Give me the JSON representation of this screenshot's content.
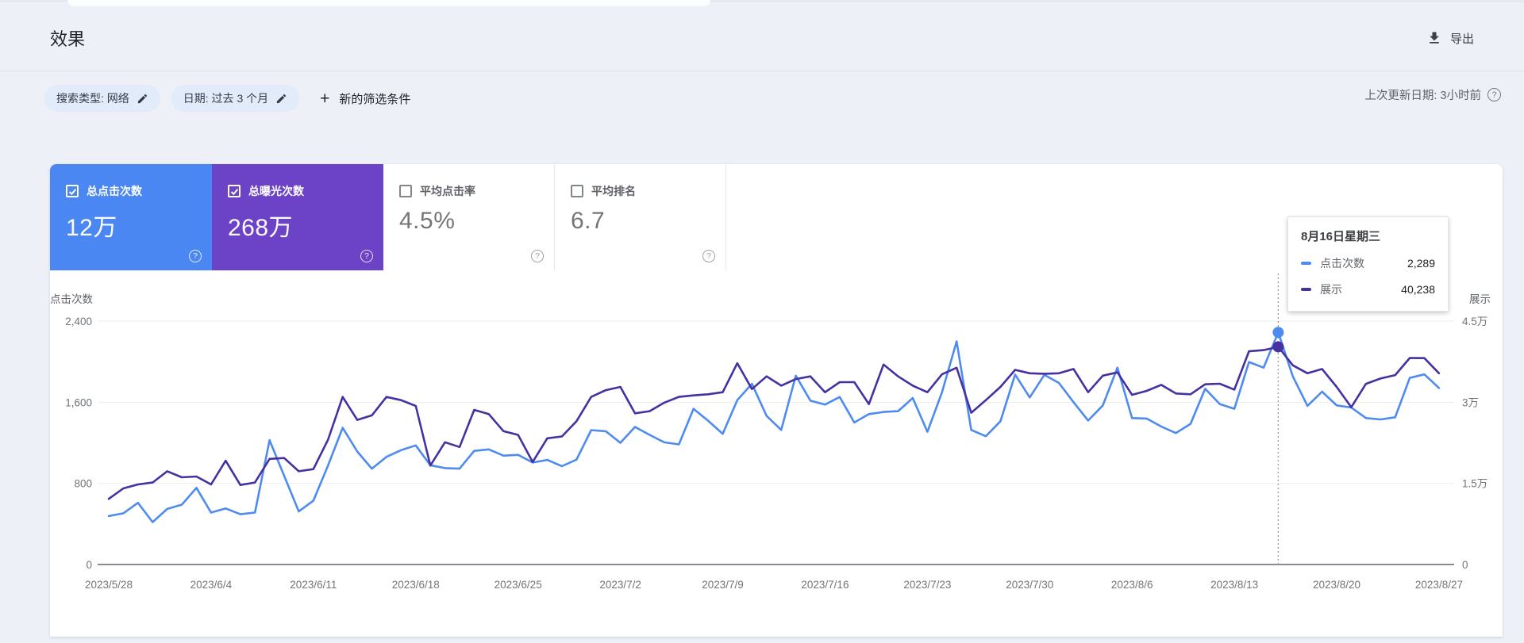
{
  "header": {
    "title": "效果",
    "export_label": "导出",
    "last_update": "上次更新日期: 3小时前"
  },
  "icons": {
    "help": "?",
    "add": "+"
  },
  "filters": {
    "chips": [
      {
        "label": "搜索类型: 网络"
      },
      {
        "label": "日期: 过去 3 个月"
      }
    ],
    "add_filter_label": "新的筛选条件"
  },
  "metrics": [
    {
      "label": "总点击次数",
      "value": "12万",
      "selected": true,
      "color": "#4b87f2"
    },
    {
      "label": "总曝光次数",
      "value": "268万",
      "selected": true,
      "color": "#6c43c7"
    },
    {
      "label": "平均点击率",
      "value": "4.5%",
      "selected": false,
      "color": ""
    },
    {
      "label": "平均排名",
      "value": "6.7",
      "selected": false,
      "color": ""
    }
  ],
  "tooltip": {
    "title": "8月16日星期三",
    "rows": [
      {
        "label": "点击次数",
        "value": "2,289"
      },
      {
        "label": "展示",
        "value": "40,238"
      }
    ]
  },
  "chart_data": {
    "type": "line",
    "x_tick_every_days": 7,
    "left_axis": {
      "title": "点击次数",
      "max": 2400,
      "ticks": [
        {
          "value": 0,
          "label": "0"
        },
        {
          "value": 800,
          "label": "800"
        },
        {
          "value": 1600,
          "label": "1,600"
        },
        {
          "value": 2400,
          "label": "2,400"
        }
      ]
    },
    "right_axis": {
      "title": "展示",
      "max": 45000,
      "ticks": [
        {
          "value": 0,
          "label": "0"
        },
        {
          "value": 15000,
          "label": "1.5万"
        },
        {
          "value": 30000,
          "label": "3万"
        },
        {
          "value": 45000,
          "label": "4.5万"
        }
      ]
    },
    "x": [
      "2023/5/28",
      "2023/5/29",
      "2023/5/30",
      "2023/5/31",
      "2023/6/1",
      "2023/6/2",
      "2023/6/3",
      "2023/6/4",
      "2023/6/5",
      "2023/6/6",
      "2023/6/7",
      "2023/6/8",
      "2023/6/9",
      "2023/6/10",
      "2023/6/11",
      "2023/6/12",
      "2023/6/13",
      "2023/6/14",
      "2023/6/15",
      "2023/6/16",
      "2023/6/17",
      "2023/6/18",
      "2023/6/19",
      "2023/6/20",
      "2023/6/21",
      "2023/6/22",
      "2023/6/23",
      "2023/6/24",
      "2023/6/25",
      "2023/6/26",
      "2023/6/27",
      "2023/6/28",
      "2023/6/29",
      "2023/6/30",
      "2023/7/1",
      "2023/7/2",
      "2023/7/3",
      "2023/7/4",
      "2023/7/5",
      "2023/7/6",
      "2023/7/7",
      "2023/7/8",
      "2023/7/9",
      "2023/7/10",
      "2023/7/11",
      "2023/7/12",
      "2023/7/13",
      "2023/7/14",
      "2023/7/15",
      "2023/7/16",
      "2023/7/17",
      "2023/7/18",
      "2023/7/19",
      "2023/7/20",
      "2023/7/21",
      "2023/7/22",
      "2023/7/23",
      "2023/7/24",
      "2023/7/25",
      "2023/7/26",
      "2023/7/27",
      "2023/7/28",
      "2023/7/29",
      "2023/7/30",
      "2023/7/31",
      "2023/8/1",
      "2023/8/2",
      "2023/8/3",
      "2023/8/4",
      "2023/8/5",
      "2023/8/6",
      "2023/8/7",
      "2023/8/8",
      "2023/8/9",
      "2023/8/10",
      "2023/8/11",
      "2023/8/12",
      "2023/8/13",
      "2023/8/14",
      "2023/8/15",
      "2023/8/16",
      "2023/8/17",
      "2023/8/18",
      "2023/8/19",
      "2023/8/20",
      "2023/8/21",
      "2023/8/22",
      "2023/8/23",
      "2023/8/24",
      "2023/8/25",
      "2023/8/26",
      "2023/8/27"
    ],
    "series": [
      {
        "name": "点击次数",
        "axis": "left",
        "color": "#4e8bf0",
        "values": [
          478,
          505,
          608,
          418,
          548,
          590,
          756,
          512,
          553,
          496,
          512,
          1226,
          875,
          524,
          629,
          977,
          1348,
          1114,
          945,
          1062,
          1127,
          1174,
          979,
          951,
          945,
          1120,
          1135,
          1073,
          1081,
          1005,
          1031,
          969,
          1034,
          1325,
          1314,
          1200,
          1356,
          1278,
          1205,
          1184,
          1535,
          1418,
          1288,
          1621,
          1782,
          1465,
          1327,
          1862,
          1615,
          1577,
          1652,
          1400,
          1483,
          1504,
          1512,
          1642,
          1309,
          1699,
          2200,
          1327,
          1265,
          1413,
          1873,
          1647,
          1870,
          1790,
          1600,
          1420,
          1569,
          1941,
          1444,
          1439,
          1360,
          1296,
          1387,
          1733,
          1582,
          1535,
          1997,
          1941,
          2289,
          1854,
          1564,
          1704,
          1569,
          1548,
          1444,
          1431,
          1452,
          1840,
          1875,
          1740
        ]
      },
      {
        "name": "展示",
        "axis": "right",
        "color": "#47309f",
        "values": [
          12130,
          14075,
          14805,
          15150,
          17240,
          16120,
          16270,
          14805,
          19190,
          14700,
          15150,
          19530,
          19680,
          17240,
          17630,
          23090,
          30980,
          26740,
          27570,
          30980,
          30390,
          29320,
          18300,
          22600,
          21730,
          28590,
          27810,
          24650,
          23960,
          18950,
          23330,
          23670,
          26490,
          30980,
          32240,
          32830,
          27960,
          28350,
          29910,
          30980,
          31270,
          31470,
          31850,
          37220,
          32440,
          34780,
          33070,
          34290,
          34780,
          31850,
          33710,
          33710,
          29660,
          36970,
          34780,
          33070,
          31850,
          35170,
          36380,
          28050,
          30390,
          32830,
          35990,
          35360,
          35260,
          35360,
          36140,
          31850,
          34920,
          35510,
          31370,
          32100,
          33220,
          31610,
          31470,
          33320,
          33420,
          32340,
          39410,
          39640,
          40238,
          36820,
          35360,
          36140,
          32830,
          29080,
          33400,
          34390,
          35020,
          38180,
          38150,
          35360
        ]
      }
    ],
    "selection": {
      "index": 80,
      "date": "2023/8/16",
      "clicks": 2289,
      "impressions": 40238
    }
  }
}
